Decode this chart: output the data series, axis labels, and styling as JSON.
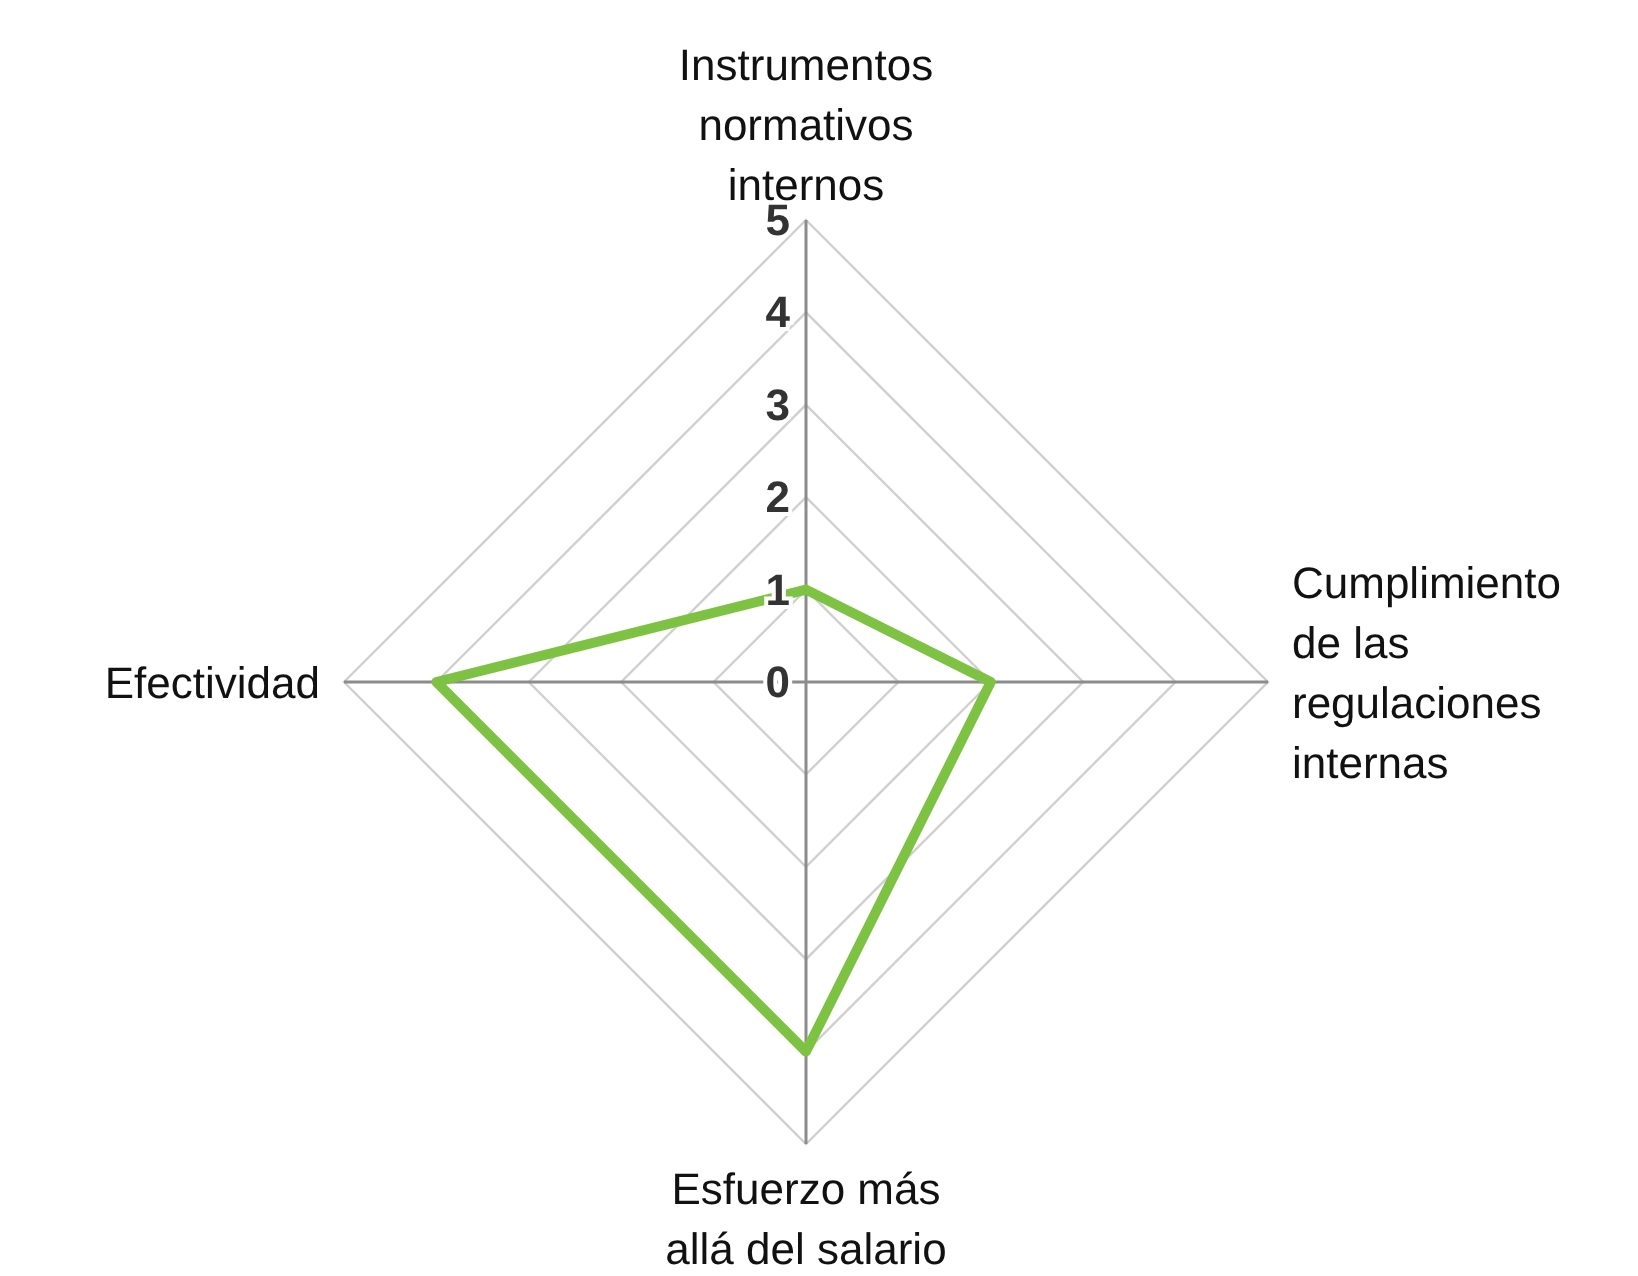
{
  "chart_data": {
    "type": "radar",
    "categories": [
      "Instrumentos normativos internos",
      "Cumplimiento de las regulaciones internas",
      "Esfuerzo más allá del salario",
      "Efectividad"
    ],
    "series": [
      {
        "color": "#7dc242",
        "values": [
          1,
          2,
          4,
          4
        ]
      }
    ],
    "ylim": [
      0,
      5
    ],
    "yticks": [
      0,
      1,
      2,
      3,
      4,
      5
    ],
    "grid": true,
    "marker": "none",
    "line_style": "solid"
  }
}
